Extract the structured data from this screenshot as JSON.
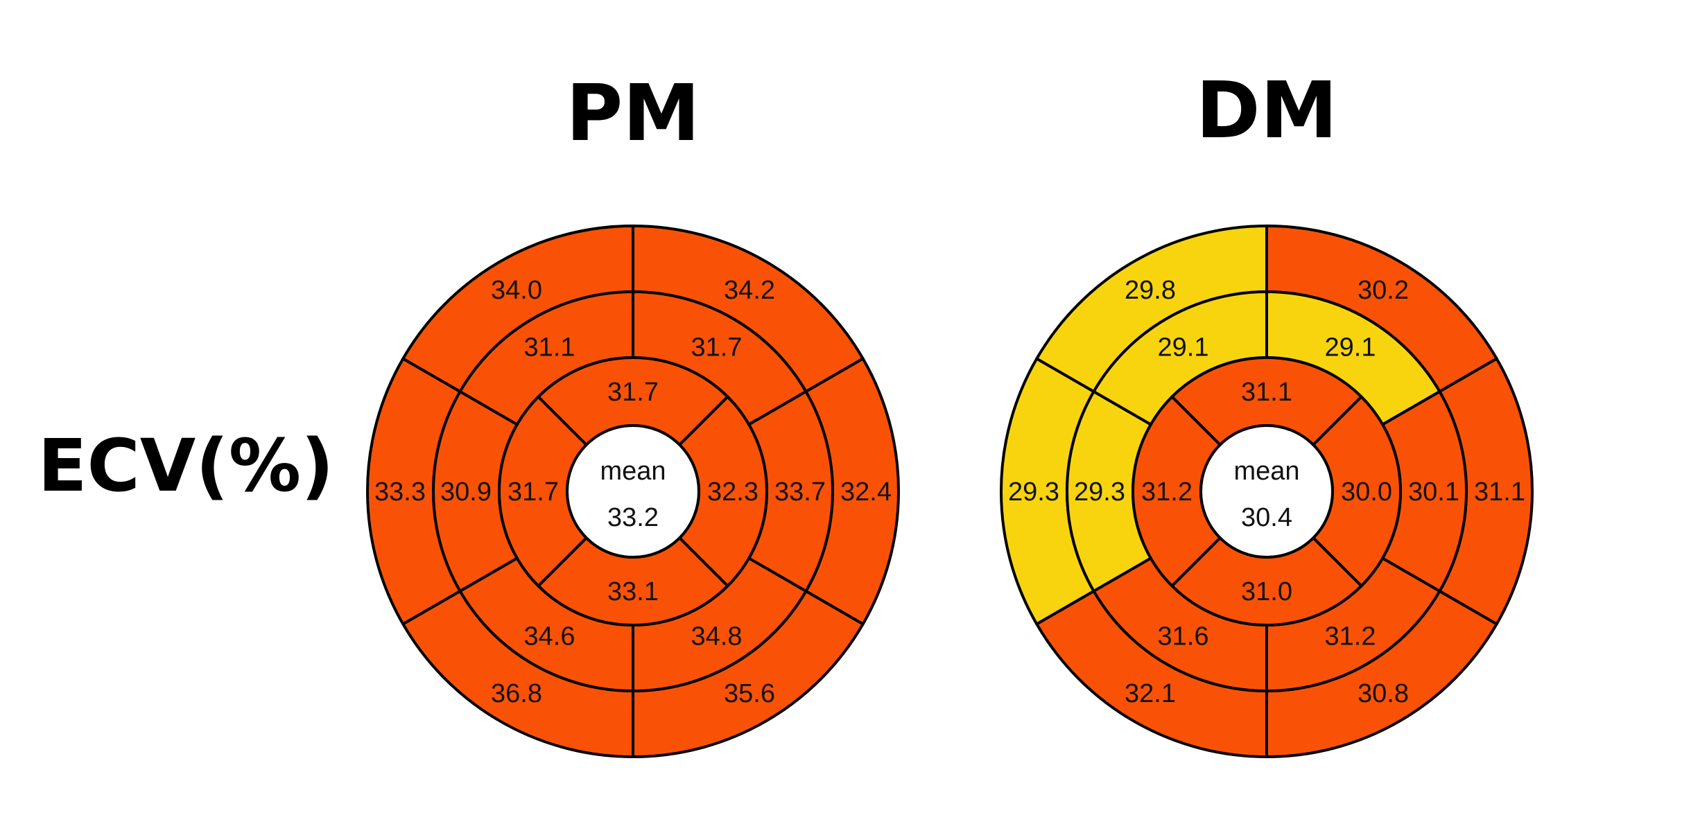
{
  "row_label": "ECV(%)",
  "colors": {
    "high": "#f95206",
    "low": "#f8d40e",
    "stroke": "#000000",
    "center": "#ffffff"
  },
  "panels": [
    {
      "title": "PM",
      "center": {
        "label": "mean",
        "value": "33.2"
      },
      "basal": [
        {
          "text": "33.3",
          "color": "high"
        },
        {
          "text": "34.0",
          "color": "high"
        },
        {
          "text": "34.2",
          "color": "high"
        },
        {
          "text": "32.4",
          "color": "high"
        },
        {
          "text": "35.6",
          "color": "high"
        },
        {
          "text": "36.8",
          "color": "high"
        }
      ],
      "mid": [
        {
          "text": "30.9",
          "color": "high"
        },
        {
          "text": "31.1",
          "color": "high"
        },
        {
          "text": "31.7",
          "color": "high"
        },
        {
          "text": "33.7",
          "color": "high"
        },
        {
          "text": "34.8",
          "color": "high"
        },
        {
          "text": "34.6",
          "color": "high"
        }
      ],
      "apical": [
        {
          "text": "31.7",
          "color": "high"
        },
        {
          "text": "31.7",
          "color": "high"
        },
        {
          "text": "32.3",
          "color": "high"
        },
        {
          "text": "33.1",
          "color": "high"
        }
      ]
    },
    {
      "title": "DM",
      "center": {
        "label": "mean",
        "value": "30.4"
      },
      "basal": [
        {
          "text": "29.3",
          "color": "low"
        },
        {
          "text": "29.8",
          "color": "low"
        },
        {
          "text": "30.2",
          "color": "high"
        },
        {
          "text": "31.1",
          "color": "high"
        },
        {
          "text": "30.8",
          "color": "high"
        },
        {
          "text": "32.1",
          "color": "high"
        }
      ],
      "mid": [
        {
          "text": "29.3",
          "color": "low"
        },
        {
          "text": "29.1",
          "color": "low"
        },
        {
          "text": "29.1",
          "color": "low"
        },
        {
          "text": "30.1",
          "color": "high"
        },
        {
          "text": "31.2",
          "color": "high"
        },
        {
          "text": "31.6",
          "color": "high"
        }
      ],
      "apical": [
        {
          "text": "31.2",
          "color": "high"
        },
        {
          "text": "31.1",
          "color": "high"
        },
        {
          "text": "30.0",
          "color": "high"
        },
        {
          "text": "31.0",
          "color": "high"
        }
      ]
    }
  ]
}
